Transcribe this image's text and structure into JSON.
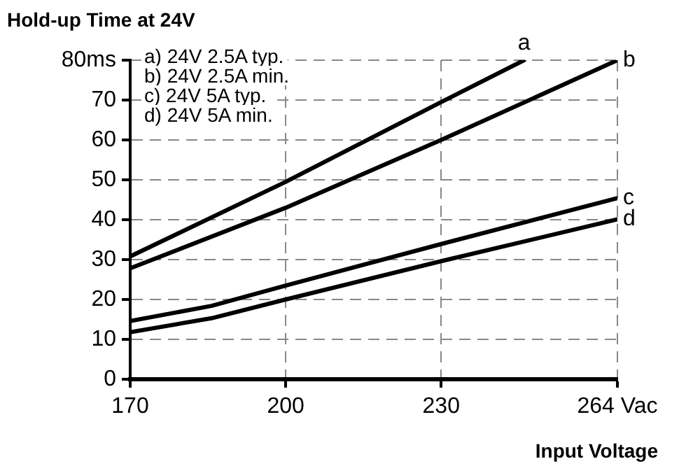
{
  "chart_data": {
    "type": "line",
    "title": "Hold-up Time at 24V",
    "xlabel": "Input Voltage",
    "annotations": [
      "a) 24V 2.5A typ.",
      "b) 24V 2.5A min.",
      "c) 24V 5A typ.",
      "d) 24V 5A min."
    ],
    "series": [
      {
        "name": "a",
        "color": "#000000",
        "x": [
          170,
          200,
          230,
          246
        ],
        "values": [
          30.8,
          49.5,
          69.5,
          80
        ]
      },
      {
        "name": "b",
        "color": "#000000",
        "x": [
          170,
          200,
          230,
          264
        ],
        "values": [
          27.8,
          43,
          60,
          80
        ]
      },
      {
        "name": "c",
        "color": "#000000",
        "x": [
          170,
          185.7,
          200,
          230,
          264
        ],
        "values": [
          14.6,
          18.4,
          23.5,
          33.9,
          45.4
        ]
      },
      {
        "name": "d",
        "color": "#000000",
        "x": [
          170,
          185.7,
          200,
          230,
          264
        ],
        "values": [
          11.8,
          15.3,
          20,
          29.6,
          40.1
        ]
      }
    ],
    "xlim": [
      170,
      264
    ],
    "xticks": [
      170,
      200,
      230,
      {
        "value": 264,
        "label": "264 Vac"
      }
    ],
    "ylim": [
      0,
      80
    ],
    "yticks": [
      0,
      10,
      20,
      30,
      40,
      50,
      60,
      70,
      {
        "value": 80,
        "label": "80ms"
      }
    ],
    "grid": true,
    "legend": false,
    "marker": "none",
    "line_style": "solid"
  }
}
